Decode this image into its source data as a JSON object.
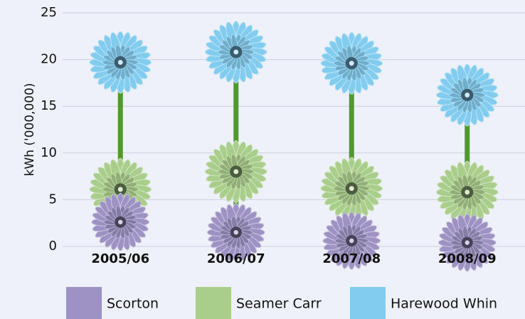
{
  "chart_data": {
    "type": "flower",
    "y_label": "kWh ('000,000)",
    "categories": [
      "2005/06",
      "2006/07",
      "2007/08",
      "2008/09"
    ],
    "series": [
      {
        "name": "Scorton",
        "color": "#9d92c3",
        "values": [
          2.6,
          1.5,
          0.6,
          0.4
        ]
      },
      {
        "name": "Seamer Carr",
        "color": "#a9cd8b",
        "values": [
          6.1,
          8.0,
          6.2,
          5.8
        ]
      },
      {
        "name": "Harewood Whin",
        "color": "#82ccef",
        "values": [
          19.7,
          20.8,
          19.6,
          16.2
        ]
      }
    ],
    "ylim": [
      0,
      25
    ],
    "yticks": [
      0,
      5,
      10,
      15,
      20,
      25
    ],
    "grid": true,
    "legend": "bottom"
  }
}
